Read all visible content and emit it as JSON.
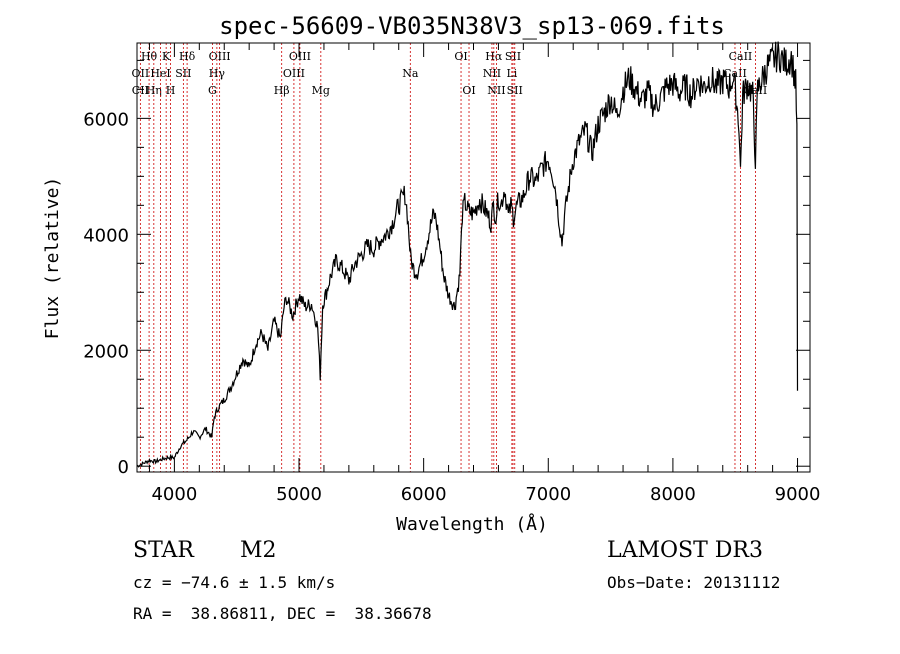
{
  "chart_data": {
    "type": "line",
    "title": "spec-56609-VB035N38V3_sp13-069.fits",
    "xlabel": "Wavelength (Å)",
    "ylabel": "Flux (relative)",
    "xlim": [
      3700,
      9100
    ],
    "ylim": [
      -100,
      7300
    ],
    "x_ticks": [
      4000,
      5000,
      6000,
      7000,
      8000,
      9000
    ],
    "y_ticks": [
      0,
      2000,
      4000,
      6000
    ],
    "x_tick_labels": [
      "4000",
      "5000",
      "6000",
      "7000",
      "8000",
      "9000"
    ],
    "y_tick_labels": [
      "0",
      "2000",
      "4000",
      "6000"
    ],
    "grid": false,
    "series": [
      {
        "name": "flux",
        "x": [
          3700,
          3750,
          3800,
          3850,
          3900,
          3950,
          4000,
          4050,
          4100,
          4150,
          4200,
          4250,
          4300,
          4320,
          4350,
          4400,
          4450,
          4500,
          4550,
          4600,
          4650,
          4700,
          4750,
          4800,
          4850,
          4880,
          4900,
          4950,
          5000,
          5050,
          5100,
          5150,
          5170,
          5190,
          5220,
          5250,
          5300,
          5350,
          5400,
          5450,
          5500,
          5550,
          5600,
          5650,
          5700,
          5750,
          5800,
          5850,
          5870,
          5895,
          5920,
          5950,
          6000,
          6050,
          6080,
          6100,
          6130,
          6160,
          6200,
          6250,
          6290,
          6310,
          6330,
          6360,
          6400,
          6450,
          6500,
          6540,
          6560,
          6580,
          6600,
          6620,
          6650,
          6680,
          6700,
          6720,
          6750,
          6800,
          6850,
          6900,
          6950,
          7000,
          7030,
          7060,
          7090,
          7110,
          7130,
          7150,
          7180,
          7200,
          7250,
          7300,
          7350,
          7400,
          7450,
          7500,
          7550,
          7600,
          7650,
          7700,
          7750,
          7800,
          7850,
          7900,
          7950,
          8000,
          8050,
          8100,
          8150,
          8200,
          8250,
          8300,
          8350,
          8400,
          8450,
          8480,
          8500,
          8530,
          8542,
          8560,
          8600,
          8640,
          8662,
          8680,
          8720,
          8760,
          8800,
          8850,
          8900,
          8950,
          8970,
          8985,
          8995,
          9000
        ],
        "y": [
          0,
          50,
          100,
          80,
          120,
          150,
          150,
          350,
          450,
          600,
          500,
          650,
          500,
          850,
          1000,
          1150,
          1350,
          1600,
          1850,
          1700,
          2100,
          2300,
          2000,
          2500,
          2200,
          2750,
          2900,
          2600,
          2950,
          2750,
          2800,
          2400,
          1550,
          2800,
          3000,
          3250,
          3550,
          3400,
          3200,
          3500,
          3650,
          3800,
          3750,
          3900,
          4000,
          4200,
          4500,
          4700,
          4350,
          3600,
          3400,
          3350,
          3650,
          4100,
          4350,
          4250,
          3800,
          3300,
          2950,
          2750,
          3300,
          4350,
          4550,
          4400,
          4350,
          4600,
          4400,
          4200,
          4500,
          4300,
          4650,
          4500,
          4800,
          4300,
          4500,
          4300,
          4500,
          4650,
          5000,
          4900,
          5150,
          5300,
          5100,
          4750,
          4200,
          3850,
          4300,
          4600,
          5050,
          5300,
          5600,
          5800,
          5400,
          5900,
          6100,
          6350,
          6050,
          6500,
          6700,
          6500,
          6300,
          6450,
          6200,
          6350,
          6550,
          6600,
          6450,
          6550,
          6400,
          6650,
          6550,
          6700,
          6550,
          6650,
          6550,
          6700,
          6500,
          5900,
          5100,
          6400,
          6600,
          6400,
          5300,
          6500,
          6700,
          6900,
          7000,
          7100,
          6950,
          7050,
          6800,
          6600,
          5800,
          1300
        ]
      }
    ],
    "lines": [
      {
        "label": "CII",
        "x": 3727,
        "row": 2
      },
      {
        "label": "Hθ",
        "x": 3797,
        "row": 0
      },
      {
        "label": "OII",
        "x": 3727,
        "row": 1
      },
      {
        "label": "Hη",
        "x": 3835,
        "row": 2
      },
      {
        "label": "HeI",
        "x": 3889,
        "row": 1
      },
      {
        "label": "K",
        "x": 3934,
        "row": 0
      },
      {
        "label": "H",
        "x": 3969,
        "row": 2
      },
      {
        "label": "SII",
        "x": 4072,
        "row": 1
      },
      {
        "label": "Hδ",
        "x": 4102,
        "row": 0
      },
      {
        "label": "OIII",
        "x": 4363,
        "row": 0
      },
      {
        "label": "Hγ",
        "x": 4341,
        "row": 1
      },
      {
        "label": "G",
        "x": 4305,
        "row": 2
      },
      {
        "label": "Hβ",
        "x": 4861,
        "row": 2
      },
      {
        "label": "OIII",
        "x": 4959,
        "row": 1
      },
      {
        "label": "OIII",
        "x": 5007,
        "row": 0
      },
      {
        "label": "Mg",
        "x": 5175,
        "row": 2
      },
      {
        "label": "Na",
        "x": 5893,
        "row": 1
      },
      {
        "label": "OI",
        "x": 6300,
        "row": 0
      },
      {
        "label": "OI",
        "x": 6364,
        "row": 2
      },
      {
        "label": "Hα",
        "x": 6563,
        "row": 0
      },
      {
        "label": "NII",
        "x": 6548,
        "row": 1
      },
      {
        "label": "NII",
        "x": 6584,
        "row": 2
      },
      {
        "label": "SII",
        "x": 6717,
        "row": 0
      },
      {
        "label": "Li",
        "x": 6708,
        "row": 1
      },
      {
        "label": "SII",
        "x": 6731,
        "row": 2
      },
      {
        "label": "CaII",
        "x": 8498,
        "row": 1
      },
      {
        "label": "CaII",
        "x": 8542,
        "row": 0
      },
      {
        "label": "CaII",
        "x": 8662,
        "row": 2
      }
    ]
  },
  "info": {
    "class_label": "STAR",
    "subclass": "M2",
    "survey": "LAMOST DR3",
    "cz": "cz = −74.6 ± 1.5 km/s",
    "obs_date": "Obs−Date: 20131112",
    "coords": "RA =  38.86811, DEC =  38.36678"
  }
}
